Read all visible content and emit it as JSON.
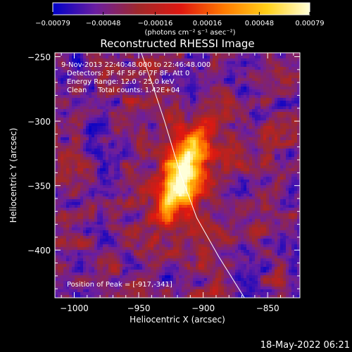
{
  "chart_data": {
    "type": "heatmap",
    "title": "Reconstructed RHESSI Image",
    "xlabel": "Heliocentric X (arcsec)",
    "ylabel": "Heliocentric Y (arcsec)",
    "xlim": [
      -1015,
      -825
    ],
    "ylim": [
      -437,
      -247
    ],
    "x_ticks": [
      -1000,
      -950,
      -900,
      -850
    ],
    "x_tick_labels": [
      "−1000",
      "−950",
      "−900",
      "−850"
    ],
    "y_ticks": [
      -250,
      -300,
      -350,
      -400
    ],
    "y_tick_labels": [
      "−250",
      "−300",
      "−350",
      "−400"
    ],
    "colorbar": {
      "range": [
        -0.00079,
        0.00079
      ],
      "ticks": [
        -0.00079,
        -0.00048,
        -0.00016,
        0.00016,
        0.00048,
        0.00079
      ],
      "tick_labels": [
        "−0.00079",
        "−0.00048",
        "−0.00016",
        "0.00016",
        "0.00048",
        "0.00079"
      ],
      "unit_label": "(photons cm⁻² s⁻¹ asec⁻²)",
      "stops": [
        "#0000c8",
        "#6b1ea0",
        "#a0282a",
        "#e01810",
        "#ff7a00",
        "#ffd018",
        "#ffffd8"
      ]
    },
    "peak": {
      "x": -917,
      "y": -341
    },
    "limb_curve": [
      [
        -948,
        -247
      ],
      [
        -940,
        -270
      ],
      [
        -930,
        -300
      ],
      [
        -918,
        -340
      ],
      [
        -905,
        -375
      ],
      [
        -888,
        -405
      ],
      [
        -868,
        -437
      ]
    ],
    "annotations": [
      "9-Nov-2013 22:40:48.000 to 22:46:48.000",
      "Detectors: 3F 4F 5F 6F 7F 8F, Att 0",
      "Energy Range: 12.0 - 25.0 keV",
      "Clean     Total counts: 1.42E+04"
    ],
    "peak_label": "Position of Peak = [-917,-341]"
  },
  "timestamp": "18-May-2022 06:21"
}
